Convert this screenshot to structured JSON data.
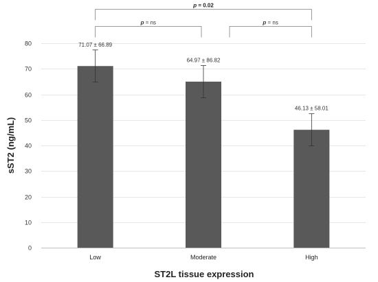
{
  "chart_data": {
    "type": "bar",
    "categories": [
      "Low",
      "Moderate",
      "High"
    ],
    "values": [
      71.07,
      64.97,
      46.13
    ],
    "error_bars": [
      6.3,
      6.3,
      6.3
    ],
    "data_labels": [
      "71.07 ± 66.89",
      "64.97 ± 86.82",
      "46.13 ± 58.01"
    ],
    "xlabel": "ST2L tissue expression",
    "ylabel": "sST2 (ng/mL)",
    "ylim": [
      0,
      80
    ],
    "yticks": [
      0,
      10,
      20,
      30,
      40,
      50,
      60,
      70,
      80
    ],
    "bar_color": "#595959",
    "grid": true,
    "significance": [
      {
        "p_label": "p",
        "value_text": " = ns",
        "from": "Low",
        "to": "Moderate",
        "level": 1
      },
      {
        "p_label": "p",
        "value_text": " = ns",
        "from": "Moderate",
        "to": "High",
        "level": 1
      },
      {
        "p_label": "p",
        "value_text": " = 0.02",
        "from": "Low",
        "to": "High",
        "level": 2
      }
    ]
  }
}
